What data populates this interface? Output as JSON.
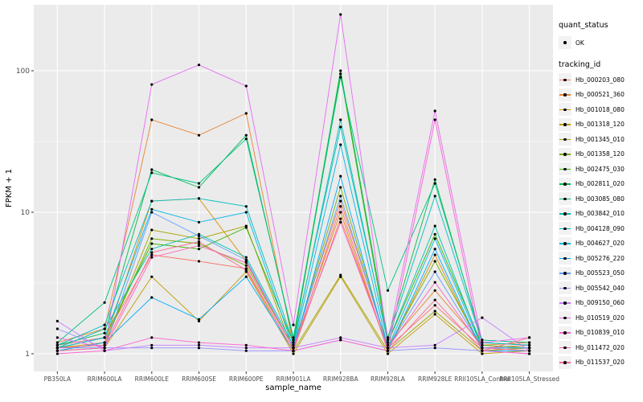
{
  "chart_data": {
    "type": "line",
    "title": "",
    "xlabel": "sample_name",
    "ylabel": "FPKM + 1",
    "y_scale": "log10",
    "y_ticks": [
      "1",
      "10",
      "100"
    ],
    "ylim": [
      0.75,
      300
    ],
    "grid": true,
    "panel_background": "#EBEBEB",
    "gridline_color": "#FFFFFF",
    "point_color": "#000000",
    "legend_position": "right",
    "categories": [
      "PB350LA",
      "RRIM600LA",
      "RRIM600LE",
      "RRIM600SE",
      "RRIM600PE",
      "RRIM901LA",
      "RRIM928BA",
      "RRIM928LA",
      "RRIM928LE",
      "RRII105LA_Control",
      "RRII105LA_Stressed"
    ],
    "legend": {
      "quant_status_title": "quant_status",
      "quant_status_items": [
        {
          "label": "OK",
          "symbol": "point-icon"
        }
      ],
      "tracking_id_title": "tracking_id"
    },
    "series": [
      {
        "name": "Hb_000203_080",
        "color": "#F8766D",
        "values": [
          1.15,
          1.3,
          5.0,
          4.5,
          4.0,
          1.05,
          9.0,
          1.1,
          2.2,
          1.1,
          1.15
        ]
      },
      {
        "name": "Hb_000521_360",
        "color": "#EA8331",
        "values": [
          1.2,
          1.5,
          45,
          35,
          50,
          1.15,
          12,
          1.15,
          2.8,
          1.15,
          1.2
        ]
      },
      {
        "name": "Hb_001018_080",
        "color": "#D89000",
        "values": [
          1.1,
          1.2,
          12,
          12.5,
          4.5,
          1.1,
          10,
          1.05,
          5.0,
          1.05,
          1.1
        ]
      },
      {
        "name": "Hb_001318_120",
        "color": "#C09B00",
        "values": [
          1.05,
          1.1,
          3.5,
          1.7,
          3.8,
          1.0,
          3.5,
          1.0,
          1.9,
          1.0,
          1.05
        ]
      },
      {
        "name": "Hb_001345_010",
        "color": "#A3A500",
        "values": [
          1.1,
          1.15,
          7.5,
          6.5,
          8.0,
          1.05,
          3.6,
          1.05,
          2.0,
          1.05,
          1.1
        ]
      },
      {
        "name": "Hb_001358_120",
        "color": "#7CAE00",
        "values": [
          1.05,
          1.2,
          6.5,
          6.0,
          4.2,
          1.1,
          15,
          1.1,
          4.5,
          1.1,
          1.05
        ]
      },
      {
        "name": "Hb_002475_030",
        "color": "#39B600",
        "values": [
          1.1,
          1.3,
          6.0,
          5.5,
          7.8,
          1.2,
          95,
          1.2,
          7.0,
          1.15,
          1.1
        ]
      },
      {
        "name": "Hb_002811_020",
        "color": "#00BB4E",
        "values": [
          1.15,
          1.4,
          20,
          15,
          35,
          1.25,
          100,
          1.3,
          17,
          1.2,
          1.15
        ]
      },
      {
        "name": "Hb_003085_080",
        "color": "#00C087",
        "values": [
          1.2,
          2.3,
          19,
          16,
          33,
          1.3,
          90,
          2.8,
          16,
          1.25,
          1.2
        ]
      },
      {
        "name": "Hb_003842_010",
        "color": "#00C0B2",
        "values": [
          1.1,
          1.5,
          5.5,
          7.0,
          4.8,
          1.15,
          45,
          1.2,
          8.0,
          1.1,
          1.1
        ]
      },
      {
        "name": "Hb_004128_090",
        "color": "#00BFC4",
        "values": [
          1.15,
          1.6,
          12,
          12.5,
          11,
          1.2,
          40,
          1.25,
          13,
          1.2,
          1.15
        ]
      },
      {
        "name": "Hb_004627_020",
        "color": "#00B8E5",
        "values": [
          1.1,
          1.3,
          10.5,
          8.5,
          10,
          1.1,
          30,
          1.1,
          6.5,
          1.1,
          1.1
        ]
      },
      {
        "name": "Hb_005276_220",
        "color": "#00ACFC",
        "values": [
          1.05,
          1.2,
          2.5,
          1.75,
          3.5,
          1.05,
          18,
          1.05,
          5.5,
          1.05,
          1.05
        ]
      },
      {
        "name": "Hb_005523_050",
        "color": "#619CFF",
        "values": [
          1.1,
          1.1,
          10,
          6.8,
          4.6,
          1.1,
          13,
          1.1,
          3.8,
          1.1,
          1.1
        ]
      },
      {
        "name": "Hb_005542_040",
        "color": "#9590FF",
        "values": [
          1.5,
          1.1,
          1.1,
          1.1,
          1.05,
          1.05,
          1.25,
          1.05,
          1.1,
          1.05,
          1.0
        ]
      },
      {
        "name": "Hb_009150_060",
        "color": "#C77CFF",
        "values": [
          1.7,
          1.05,
          1.15,
          1.15,
          1.1,
          1.1,
          1.3,
          1.1,
          1.15,
          1.8,
          1.05
        ]
      },
      {
        "name": "Hb_010519_020",
        "color": "#E76BF3",
        "values": [
          1.3,
          1.1,
          80,
          110,
          78,
          1.6,
          250,
          1.2,
          52,
          1.2,
          1.3
        ]
      },
      {
        "name": "Hb_010839_010",
        "color": "#FD61D1",
        "values": [
          1.0,
          1.05,
          1.3,
          1.2,
          1.15,
          1.05,
          1.25,
          1.05,
          45,
          1.05,
          1.0
        ]
      },
      {
        "name": "Hb_011472_020",
        "color": "#FF62BC",
        "values": [
          1.05,
          1.1,
          4.8,
          5.8,
          4.4,
          1.1,
          8.5,
          1.1,
          3.2,
          1.1,
          1.05
        ]
      },
      {
        "name": "Hb_011537_020",
        "color": "#FF6A98",
        "values": [
          1.1,
          1.15,
          5.2,
          6.2,
          3.9,
          1.05,
          11,
          1.05,
          2.4,
          1.05,
          1.3
        ]
      }
    ]
  }
}
